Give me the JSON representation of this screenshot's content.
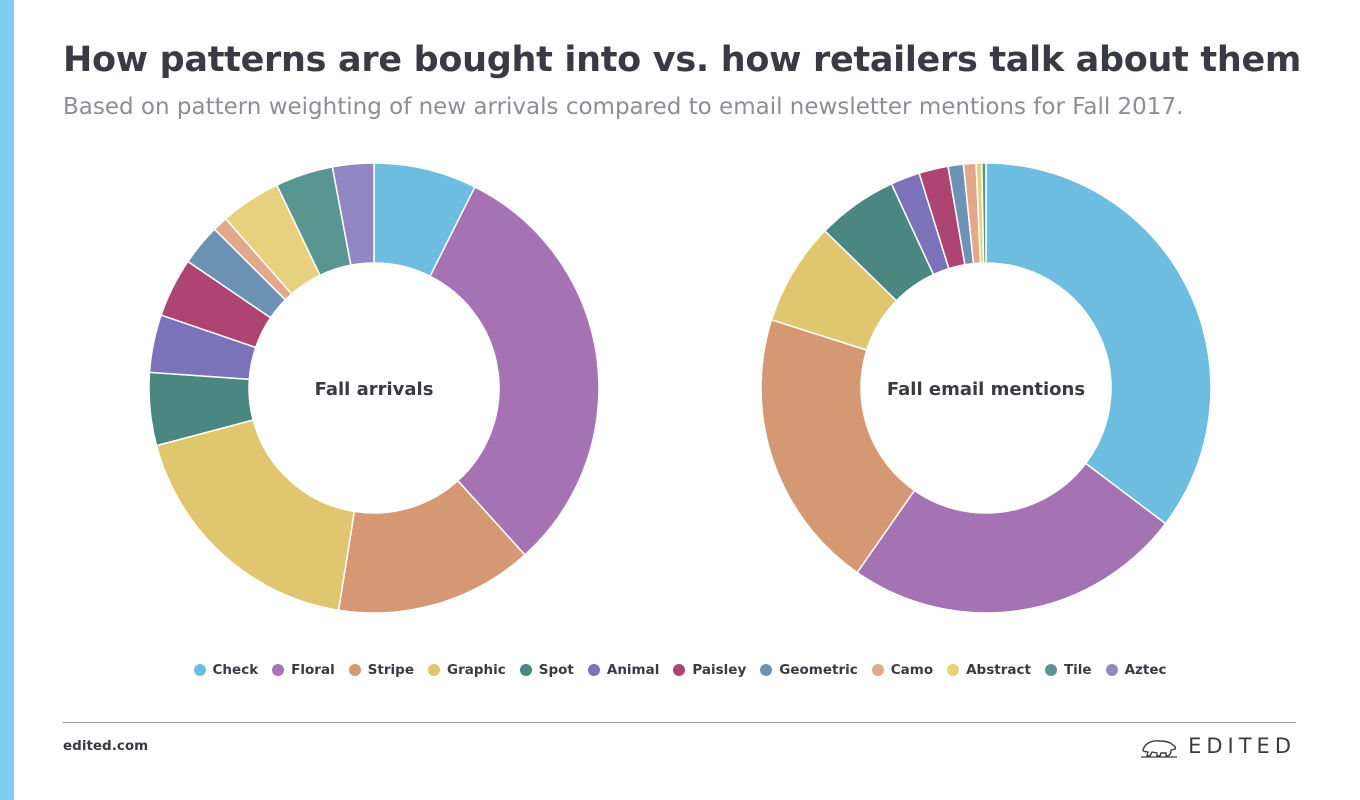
{
  "header": {
    "title": "How patterns are bought into vs. how retailers talk about them",
    "subtitle": "Based on pattern weighting of new arrivals compared to email newsletter mentions for Fall 2017."
  },
  "colors": {
    "accent": "#7fcdf0",
    "Check": "#6dbde0",
    "Floral": "#a572b4",
    "Stripe": "#d49873",
    "Graphic": "#e0c66e",
    "Spot": "#4a8780",
    "Animal": "#7c72ba",
    "Paisley": "#ad4471",
    "Geometric": "#6c93b3",
    "Camo": "#e2a889",
    "Abstract": "#e8d17e",
    "Tile": "#5a9691",
    "Aztec": "#9187c5"
  },
  "legend": [
    {
      "label": "Check"
    },
    {
      "label": "Floral"
    },
    {
      "label": "Stripe"
    },
    {
      "label": "Graphic"
    },
    {
      "label": "Spot"
    },
    {
      "label": "Animal"
    },
    {
      "label": "Paisley"
    },
    {
      "label": "Geometric"
    },
    {
      "label": "Camo"
    },
    {
      "label": "Abstract"
    },
    {
      "label": "Tile"
    },
    {
      "label": "Aztec"
    }
  ],
  "chart_data": [
    {
      "type": "pie",
      "center_label": "Fall arrivals",
      "categories": [
        "Check",
        "Floral",
        "Stripe",
        "Graphic",
        "Spot",
        "Animal",
        "Paisley",
        "Geometric",
        "Camo",
        "Abstract",
        "Tile",
        "Aztec"
      ],
      "values": [
        7.5,
        31.3,
        14.4,
        18.6,
        5.3,
        4.2,
        4.3,
        3.0,
        1.1,
        4.4,
        4.2,
        3.0
      ],
      "unit": "%"
    },
    {
      "type": "pie",
      "center_label": "Fall email mentions",
      "categories": [
        "Check",
        "Floral",
        "Stripe",
        "Graphic",
        "Spot",
        "Animal",
        "Paisley",
        "Geometric",
        "Camo",
        "Abstract",
        "Tile",
        "Aztec"
      ],
      "values": [
        35.3,
        24.4,
        20.2,
        7.4,
        5.8,
        2.1,
        2.1,
        1.1,
        0.9,
        0.4,
        0.3,
        0.0
      ],
      "unit": "%"
    }
  ],
  "footer": {
    "url": "edited.com",
    "brand": "EDITED"
  }
}
